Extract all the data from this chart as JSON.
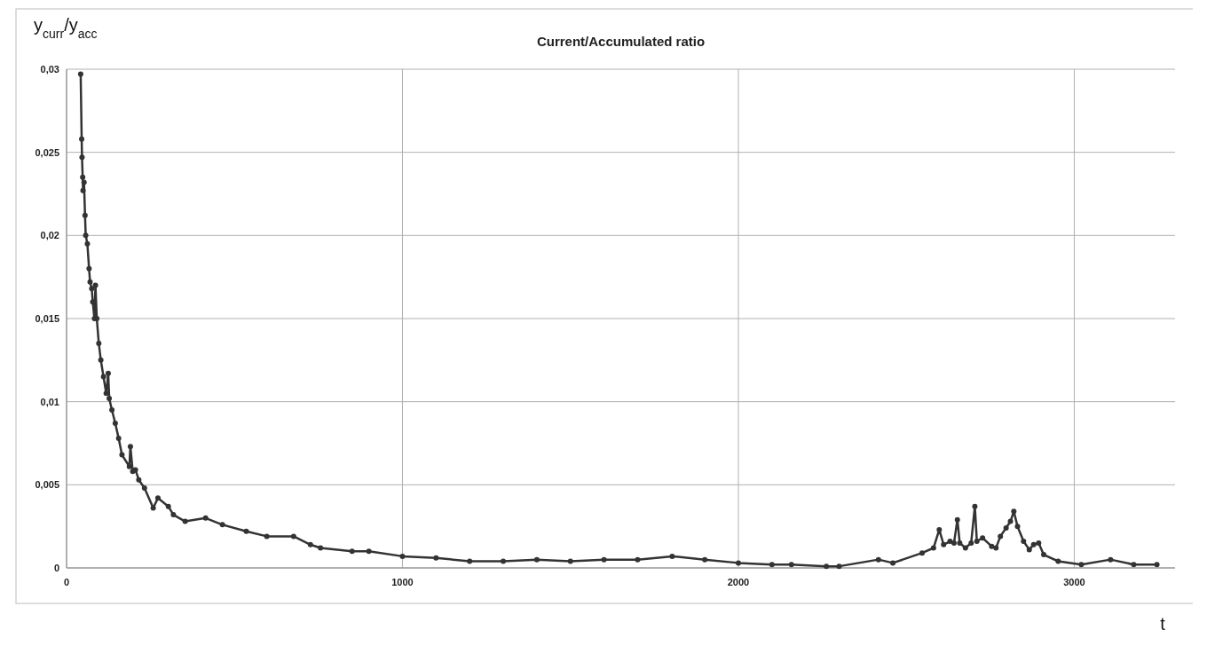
{
  "chart_data": {
    "type": "line",
    "title": "Current/Accumulated ratio",
    "xlabel": "t",
    "ylabel": "y$_{curr}$/y$_{acc}$",
    "xlim": [
      0,
      3300
    ],
    "xticks": [
      0,
      1000,
      2000,
      3000
    ],
    "ylim": [
      0,
      0.03
    ],
    "yticks": [
      0,
      {
        "value": 0.005,
        "label": "0,005"
      },
      {
        "value": 0.01,
        "label": "0,01"
      },
      {
        "value": 0.015,
        "label": "0,015"
      },
      {
        "value": 0.02,
        "label": "0,02"
      },
      {
        "value": 0.025,
        "label": "0,025"
      },
      {
        "value": 0.03,
        "label": "0,03"
      }
    ],
    "grid": true,
    "marker": "circle",
    "line_style": "solid",
    "series": [
      {
        "color": "#333333",
        "x": [
          42,
          45,
          46,
          48,
          49,
          52,
          55,
          57,
          62,
          67,
          70,
          75,
          78,
          83,
          86,
          90,
          96,
          102,
          110,
          118,
          124,
          127,
          135,
          145,
          155,
          165,
          187,
          190,
          197,
          205,
          215,
          232,
          258,
          272,
          303,
          318,
          353,
          414,
          464,
          535,
          596,
          676,
          726,
          756,
          850,
          900,
          1000,
          1100,
          1200,
          1300,
          1400,
          1500,
          1600,
          1700,
          1803,
          1900,
          2000,
          2100,
          2158,
          2262,
          2300,
          2417,
          2460,
          2547,
          2581,
          2598,
          2611,
          2630,
          2642,
          2652,
          2659,
          2676,
          2693,
          2704,
          2710,
          2727,
          2754,
          2767,
          2780,
          2797,
          2810,
          2820,
          2831,
          2849,
          2866,
          2879,
          2894,
          2909,
          2952,
          3021,
          3108,
          3177,
          3246
        ],
        "values": [
          0.0297,
          0.0258,
          0.0247,
          0.0235,
          0.0227,
          0.0232,
          0.0212,
          0.02,
          0.0195,
          0.018,
          0.0172,
          0.0168,
          0.016,
          0.015,
          0.017,
          0.015,
          0.0135,
          0.0125,
          0.0115,
          0.0105,
          0.0117,
          0.0102,
          0.0095,
          0.0087,
          0.0078,
          0.0068,
          0.0061,
          0.0073,
          0.0058,
          0.0059,
          0.0053,
          0.0048,
          0.0036,
          0.0042,
          0.0037,
          0.0032,
          0.0028,
          0.003,
          0.0026,
          0.0022,
          0.0019,
          0.0019,
          0.0014,
          0.0012,
          0.001,
          0.001,
          0.0007,
          0.0006,
          0.0004,
          0.0004,
          0.0005,
          0.0004,
          0.0005,
          0.0005,
          0.0007,
          0.0005,
          0.0003,
          0.0002,
          0.0002,
          0.0001,
          0.0001,
          0.0005,
          0.0003,
          0.0009,
          0.0012,
          0.0023,
          0.0014,
          0.0016,
          0.0015,
          0.0029,
          0.0015,
          0.0012,
          0.0015,
          0.0037,
          0.0016,
          0.0018,
          0.0013,
          0.0012,
          0.0019,
          0.0024,
          0.0028,
          0.0034,
          0.0025,
          0.0016,
          0.0011,
          0.0014,
          0.0015,
          0.0008,
          0.0004,
          0.0002,
          0.0005,
          0.0002,
          0.0002
        ]
      }
    ]
  }
}
